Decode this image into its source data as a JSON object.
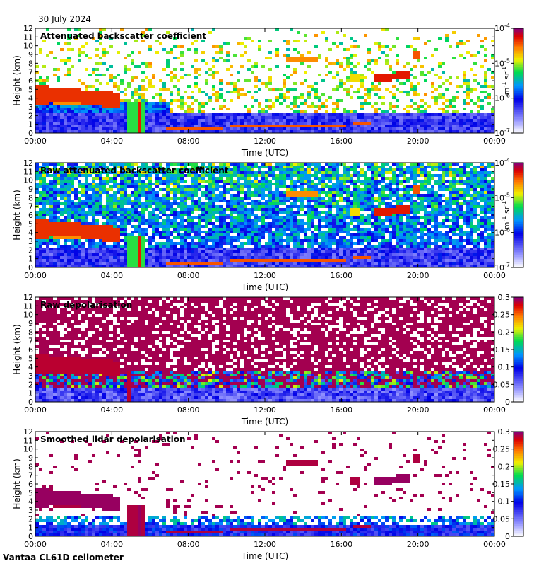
{
  "page": {
    "date": "30 July 2024",
    "site": "Vantaa CL61D ceilometer"
  },
  "chart_data": [
    {
      "type": "heatmap",
      "title": "Attenuated backscatter coefficient",
      "xlabel": "Time (UTC)",
      "ylabel": "Height (km)",
      "x_ticks": [
        "00:00",
        "04:00",
        "08:00",
        "12:00",
        "16:00",
        "20:00",
        "00:00"
      ],
      "y_ticks": [
        "0",
        "1",
        "2",
        "3",
        "4",
        "5",
        "6",
        "7",
        "8",
        "9",
        "10",
        "11",
        "12"
      ],
      "ylim": [
        0,
        12
      ],
      "colorbar": {
        "scale": "log",
        "ticks": [
          "10-7",
          "10-6",
          "10-5",
          "10-4"
        ],
        "unit": "m-1 sr-1"
      },
      "mode": "backscatter"
    },
    {
      "type": "heatmap",
      "title": "Raw attenuated backscatter coefficient",
      "xlabel": "Time (UTC)",
      "ylabel": "Height (km)",
      "x_ticks": [
        "00:00",
        "04:00",
        "08:00",
        "12:00",
        "16:00",
        "20:00",
        "00:00"
      ],
      "y_ticks": [
        "0",
        "1",
        "2",
        "3",
        "4",
        "5",
        "6",
        "7",
        "8",
        "9",
        "10",
        "11",
        "12"
      ],
      "ylim": [
        0,
        12
      ],
      "colorbar": {
        "scale": "log",
        "ticks": [
          "10-7",
          "10-6",
          "10-5",
          "10-4"
        ],
        "unit": "m-1 sr-1"
      },
      "mode": "raw_backscatter"
    },
    {
      "type": "heatmap",
      "title": "Raw depolarisation",
      "xlabel": "Time (UTC)",
      "ylabel": "Height (km)",
      "x_ticks": [
        "00:00",
        "04:00",
        "08:00",
        "12:00",
        "16:00",
        "20:00",
        "00:00"
      ],
      "y_ticks": [
        "0",
        "1",
        "2",
        "3",
        "4",
        "5",
        "6",
        "7",
        "8",
        "9",
        "10",
        "11",
        "12"
      ],
      "ylim": [
        0,
        12
      ],
      "colorbar": {
        "scale": "linear",
        "ticks": [
          "0",
          "0.05",
          "0.1",
          "0.15",
          "0.2",
          "0.25",
          "0.3"
        ],
        "unit": ""
      },
      "mode": "raw_depol"
    },
    {
      "type": "heatmap",
      "title": "Smoothed lidar depolarisation",
      "xlabel": "Time (UTC)",
      "ylabel": "Height (km)",
      "x_ticks": [
        "00:00",
        "04:00",
        "08:00",
        "12:00",
        "16:00",
        "20:00",
        "00:00"
      ],
      "y_ticks": [
        "0",
        "1",
        "2",
        "3",
        "4",
        "5",
        "6",
        "7",
        "8",
        "9",
        "10",
        "11",
        "12"
      ],
      "ylim": [
        0,
        12
      ],
      "colorbar": {
        "scale": "linear",
        "ticks": [
          "0",
          "0.05",
          "0.1",
          "0.15",
          "0.2",
          "0.25",
          "0.3"
        ],
        "unit": ""
      },
      "mode": "smooth_depol"
    }
  ]
}
